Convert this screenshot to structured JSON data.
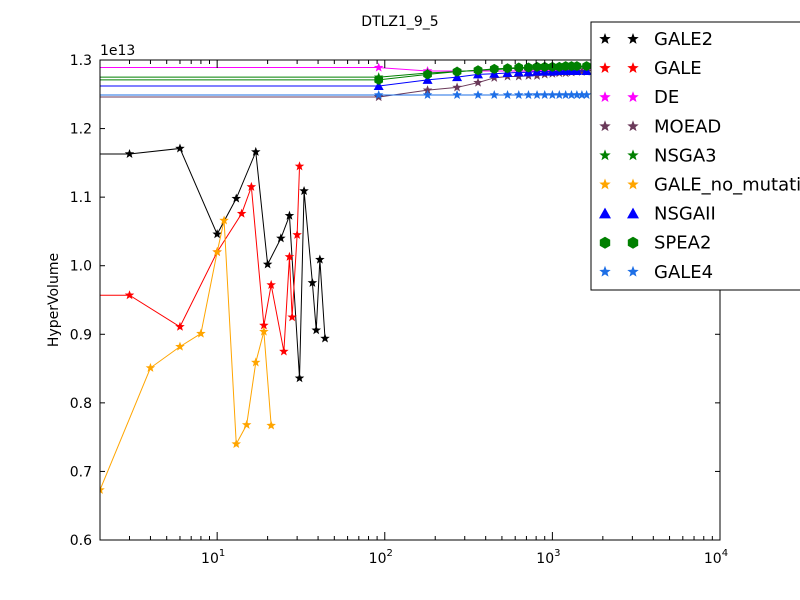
{
  "chart_data": {
    "type": "line",
    "title": "DTLZ1_9_5",
    "xlabel": "",
    "ylabel": "HyperVolume",
    "x_scale": "log",
    "xlim": [
      2,
      10000
    ],
    "ylim": [
      0.6,
      1.3
    ],
    "y_multiplier_label": "1e13",
    "x_ticks": [
      {
        "value": 10,
        "base": "10",
        "exp": "1"
      },
      {
        "value": 100,
        "base": "10",
        "exp": "2"
      },
      {
        "value": 1000,
        "base": "10",
        "exp": "3"
      },
      {
        "value": 10000,
        "base": "10",
        "exp": "4"
      }
    ],
    "y_ticks": [
      "0.6",
      "0.7",
      "0.8",
      "0.9",
      "1.0",
      "1.1",
      "1.2",
      "1.3"
    ],
    "grid": false,
    "legend_position": "top-right",
    "series": [
      {
        "name": "GALE2",
        "color": "#000000",
        "marker": "star",
        "x": [
          1,
          3,
          6,
          10,
          13,
          17,
          20,
          24,
          27,
          31,
          33,
          37,
          39,
          41,
          44
        ],
        "y": [
          1.163,
          1.163,
          1.171,
          1.046,
          1.098,
          1.166,
          1.002,
          1.04,
          1.073,
          0.836,
          1.109,
          0.975,
          0.906,
          1.009,
          0.894
        ]
      },
      {
        "name": "GALE",
        "color": "#ff0000",
        "marker": "star",
        "x": [
          1,
          3,
          6,
          10,
          14,
          16,
          19,
          21,
          25,
          27,
          28,
          30,
          31
        ],
        "y": [
          0.957,
          0.957,
          0.911,
          1.02,
          1.076,
          1.115,
          0.913,
          0.972,
          0.875,
          1.013,
          0.925,
          1.045,
          1.145
        ]
      },
      {
        "name": "DE",
        "color": "#ff00ff",
        "marker": "star",
        "x": [
          1,
          92,
          180,
          270,
          360,
          450,
          540,
          630,
          720,
          810,
          900,
          1000,
          1100,
          1200,
          1300,
          1400,
          1600
        ],
        "y": [
          1.289,
          1.289,
          1.284,
          1.284,
          1.284,
          1.284,
          1.284,
          1.284,
          1.284,
          1.284,
          1.284,
          1.284,
          1.284,
          1.284,
          1.284,
          1.284,
          1.284
        ]
      },
      {
        "name": "MOEAD",
        "color": "#6b3a5a",
        "marker": "star",
        "x": [
          1,
          92,
          180,
          270,
          360,
          450,
          540,
          630,
          720,
          810,
          900,
          1000,
          1100,
          1200,
          1300,
          1400,
          1500,
          1600
        ],
        "y": [
          1.246,
          1.246,
          1.256,
          1.26,
          1.267,
          1.274,
          1.276,
          1.276,
          1.277,
          1.277,
          1.279,
          1.28,
          1.281,
          1.281,
          1.282,
          1.283,
          1.283,
          1.283
        ]
      },
      {
        "name": "NSGA3",
        "color": "#008000",
        "marker": "star",
        "x": [
          1,
          92,
          180,
          270,
          360,
          450,
          540,
          630,
          720,
          810,
          900,
          1000,
          1100,
          1200,
          1300,
          1400,
          1600
        ],
        "y": [
          1.275,
          1.275,
          1.281,
          1.283,
          1.285,
          1.286,
          1.287,
          1.288,
          1.288,
          1.289,
          1.289,
          1.289,
          1.29,
          1.29,
          1.29,
          1.29,
          1.29
        ]
      },
      {
        "name": "GALE_no_mutation",
        "color": "#ffa500",
        "marker": "star",
        "x": [
          2,
          4,
          6,
          8,
          10,
          11,
          13,
          15,
          17,
          19,
          21
        ],
        "y": [
          0.673,
          0.851,
          0.882,
          0.901,
          1.02,
          1.066,
          0.74,
          0.768,
          0.859,
          0.904,
          0.767
        ]
      },
      {
        "name": "NSGAII",
        "color": "#0000ff",
        "marker": "triangle",
        "x": [
          1,
          92,
          180,
          270,
          360,
          450,
          540,
          630,
          720,
          810,
          900,
          1000,
          1100,
          1200,
          1300,
          1400,
          1600
        ],
        "y": [
          1.262,
          1.262,
          1.271,
          1.275,
          1.279,
          1.28,
          1.281,
          1.282,
          1.282,
          1.283,
          1.283,
          1.283,
          1.284,
          1.284,
          1.284,
          1.284,
          1.284
        ]
      },
      {
        "name": "SPEA2",
        "color": "#008000",
        "marker": "hexagon",
        "x": [
          1,
          92,
          180,
          270,
          360,
          450,
          540,
          630,
          720,
          810,
          900,
          1000,
          1100,
          1200,
          1300,
          1400,
          1600
        ],
        "y": [
          1.271,
          1.271,
          1.279,
          1.283,
          1.285,
          1.287,
          1.288,
          1.289,
          1.289,
          1.29,
          1.29,
          1.29,
          1.29,
          1.291,
          1.291,
          1.291,
          1.291
        ]
      },
      {
        "name": "GALE4",
        "color": "#1e6fe6",
        "marker": "star",
        "x": [
          1,
          92,
          180,
          270,
          360,
          450,
          540,
          630,
          720,
          810,
          900,
          1000,
          1100,
          1200,
          1300,
          1400,
          1500,
          1600
        ],
        "y": [
          1.249,
          1.249,
          1.249,
          1.249,
          1.249,
          1.249,
          1.249,
          1.249,
          1.249,
          1.249,
          1.249,
          1.249,
          1.249,
          1.249,
          1.249,
          1.249,
          1.249,
          1.249
        ]
      }
    ]
  }
}
